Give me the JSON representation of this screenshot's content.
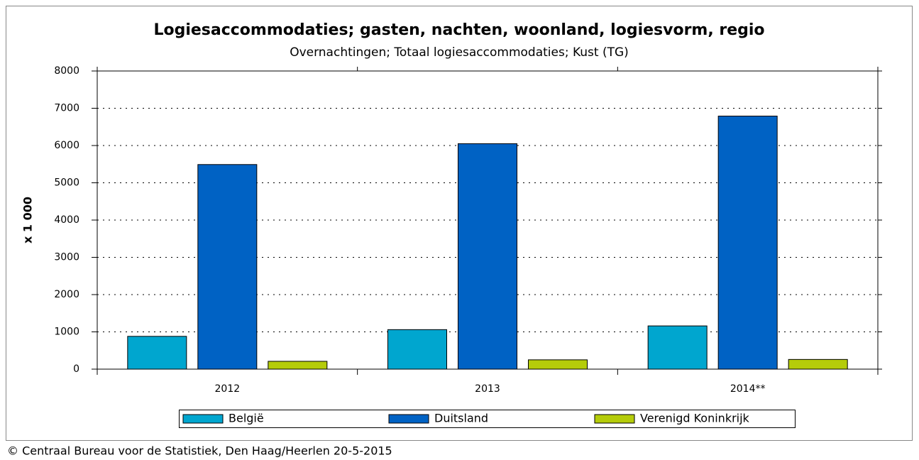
{
  "chart_data": {
    "type": "bar",
    "title": "Logiesaccommodaties; gasten, nachten, woonland, logiesvorm, regio",
    "subtitle": "Overnachtingen; Totaal logiesaccommodaties; Kust (TG)",
    "y_label": "x 1 000",
    "categories": [
      "2012",
      "2013",
      "2014**"
    ],
    "series": [
      {
        "name": "België",
        "color": "#00a6cf",
        "values": [
          880,
          1060,
          1160
        ]
      },
      {
        "name": "Duitsland",
        "color": "#0062c4",
        "values": [
          5490,
          6050,
          6790
        ]
      },
      {
        "name": "Verenigd Koninkrijk",
        "color": "#b5cc0a",
        "values": [
          210,
          250,
          260
        ]
      }
    ],
    "ylim": [
      0,
      8000
    ],
    "yticks": [
      0,
      1000,
      2000,
      3000,
      4000,
      5000,
      6000,
      7000,
      8000
    ],
    "grid": true,
    "footer": "© Centraal Bureau voor de Statistiek, Den Haag/Heerlen 20-5-2015"
  }
}
